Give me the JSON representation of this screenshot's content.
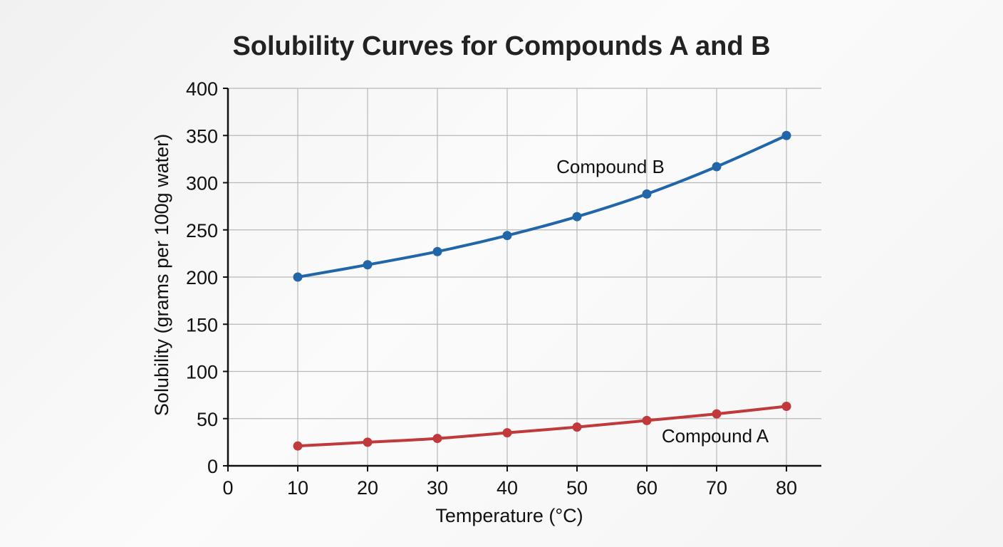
{
  "chart_data": {
    "type": "line",
    "title": "Solubility Curves for Compounds A and B",
    "xlabel": "Temperature (°C)",
    "ylabel": "Solubility (grams per 100g water)",
    "xlim": [
      0,
      85
    ],
    "ylim": [
      0,
      400
    ],
    "x_ticks": [
      "0",
      "10",
      "20",
      "30",
      "40",
      "50",
      "60",
      "70",
      "80"
    ],
    "y_ticks": [
      "0",
      "50",
      "100",
      "150",
      "200",
      "250",
      "300",
      "350",
      "400"
    ],
    "grid": true,
    "x": [
      10,
      20,
      30,
      40,
      50,
      60,
      70,
      80
    ],
    "series": [
      {
        "name": "Compound B",
        "color": "#2166a8",
        "values": [
          200,
          213,
          227,
          244,
          264,
          288,
          317,
          350
        ]
      },
      {
        "name": "Compound A",
        "color": "#c0393b",
        "values": [
          21,
          25,
          29,
          35,
          41,
          48,
          55,
          63
        ]
      }
    ]
  }
}
